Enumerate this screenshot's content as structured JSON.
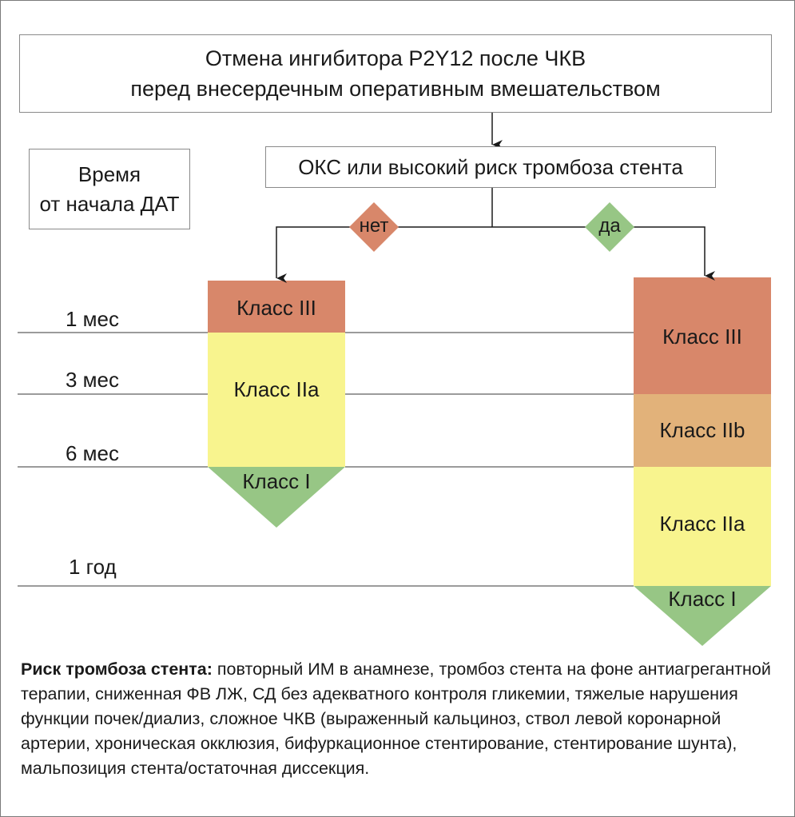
{
  "title": {
    "line1": "Отмена ингибитора P2Y12 после ЧКВ",
    "line2": "перед внесердечным оперативным вмешательством"
  },
  "question": "ОКС или высокий риск тромбоза стента",
  "time_box": {
    "line1": "Время",
    "line2": "от начала ДАТ"
  },
  "branches": {
    "no": "нет",
    "yes": "да"
  },
  "timeline": [
    "1 мес",
    "3 мес",
    "6 мес",
    "1 год"
  ],
  "left_column": {
    "segments": [
      "Класс III",
      "Класс IIa",
      "Класс I"
    ]
  },
  "right_column": {
    "segments": [
      "Класс III",
      "Класс IIb",
      "Класс IIa",
      "Класс I"
    ]
  },
  "colors": {
    "class_III": "#d8876a",
    "class_IIb": "#e2b27a",
    "class_IIa": "#f8f48e",
    "class_I": "#97c685",
    "no_diamond": "#d8876a",
    "yes_diamond": "#97c685"
  },
  "note": {
    "heading": "Риск тромбоза стента:",
    "text": " повторный ИМ в анамнезе, тромбоз стента на фоне антиагрегантной терапии, сниженная ФВ ЛЖ, СД без адекватного контроля гликемии, тяжелые нарушения функции почек/диализ, сложное ЧКВ (выраженный кальциноз, ствол левой коронарной артерии, хроническая окклюзия, бифуркационное стентирование, стентирование шунта), мальпозиция стента/остаточная диссекция."
  }
}
